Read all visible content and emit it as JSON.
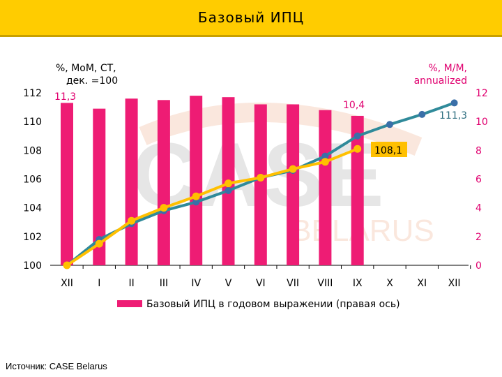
{
  "header": {
    "title": "Базовый  ИПЦ"
  },
  "footer": {
    "source": "Источник: CASE Belarus"
  },
  "watermark": {
    "line1": "CASE",
    "line2": "BELARUS"
  },
  "colors": {
    "bar": "#EE1C74",
    "line_blue": "#2F8A9A",
    "line_yellow": "#FFC000",
    "header": "#FFCC00",
    "right_axis": "#E0006F"
  },
  "chart_data": {
    "type": "bar+line",
    "categories": [
      "XII",
      "I",
      "II",
      "III",
      "IV",
      "V",
      "VI",
      "VII",
      "VIII",
      "IX",
      "X",
      "XI",
      "XII"
    ],
    "left_axis": {
      "label_line1": "%, МоМ, СТ,",
      "label_line2": "дек. =100",
      "range": [
        100,
        112
      ],
      "ticks": [
        100,
        102,
        104,
        106,
        108,
        110,
        112
      ]
    },
    "right_axis": {
      "label_line1": "%, М/М,",
      "label_line2": "annualized",
      "range": [
        0,
        12
      ],
      "ticks": [
        0,
        2,
        4,
        6,
        8,
        10,
        12
      ]
    },
    "bars": {
      "name": "Базовый ИПЦ в годовом выражении (правая ось)",
      "axis": "right",
      "values": [
        11.3,
        10.9,
        11.6,
        11.5,
        11.8,
        11.7,
        11.2,
        11.2,
        10.8,
        10.4,
        null,
        null,
        null
      ]
    },
    "series": [
      {
        "axis": "left",
        "color": "blue",
        "values": [
          100.0,
          101.8,
          102.9,
          103.8,
          104.4,
          105.2,
          106.1,
          106.6,
          107.6,
          109.0,
          109.8,
          110.5,
          111.3
        ]
      },
      {
        "axis": "left",
        "color": "yellow",
        "values": [
          100.0,
          101.5,
          103.1,
          104.0,
          104.8,
          105.7,
          106.1,
          106.7,
          107.2,
          108.1,
          null,
          null,
          null
        ]
      }
    ],
    "annotations": {
      "first_bar": "11,3",
      "last_bar": "10,4",
      "blue_end": "111,3",
      "yellow_end": "108,1"
    },
    "legend": {
      "position": "bottom"
    }
  }
}
